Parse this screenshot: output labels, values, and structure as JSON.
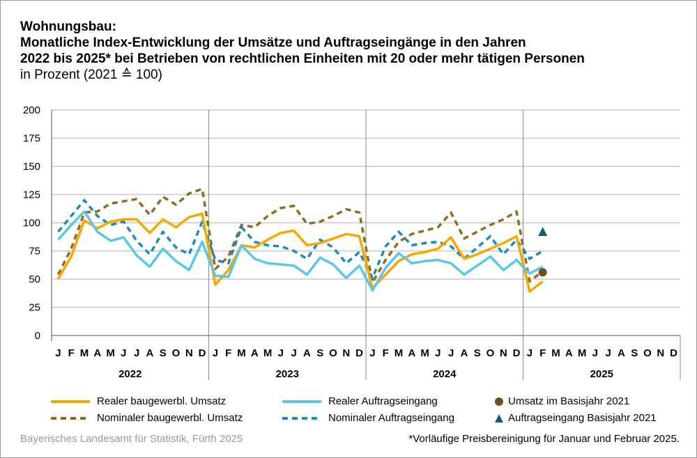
{
  "title_lines": [
    "Wohnungsbau:",
    "Monatliche Index-Entwicklung der Umsätze und Auftragseingänge in den Jahren",
    "2022 bis 2025* bei Betrieben von rechtlichen Einheiten mit 20 oder mehr tätigen Personen"
  ],
  "subtitle": "in Prozent (2021 ≙ 100)",
  "source": "Bayerisches Landesamt für Statistik, Fürth 2025",
  "footnote": "*Vorläufige Preisbereinigung für Januar und Februar 2025.",
  "chart_data": {
    "type": "line",
    "ylim": [
      0,
      200
    ],
    "yticks": [
      "0",
      "25",
      "50",
      "75",
      "100",
      "125",
      "150",
      "175",
      "200"
    ],
    "months": [
      "J",
      "F",
      "M",
      "A",
      "M",
      "J",
      "J",
      "A",
      "S",
      "O",
      "N",
      "D"
    ],
    "years": [
      "2022",
      "2023",
      "2024",
      "2025"
    ],
    "grid": true,
    "legend_position": "bottom",
    "series": [
      {
        "name": "Realer baugewerbl. Umsatz",
        "color": "#f5a800",
        "dashed": false,
        "values": [
          50,
          70,
          102,
          95,
          101,
          103,
          103,
          91,
          103,
          96,
          105,
          108,
          45,
          58,
          80,
          78,
          85,
          91,
          93,
          80,
          82,
          86,
          90,
          88,
          42,
          54,
          66,
          72,
          74,
          77,
          87,
          68,
          72,
          77,
          82,
          88,
          39,
          48
        ]
      },
      {
        "name": "Realer Auftragseingang",
        "color": "#5bc5ea",
        "dashed": false,
        "values": [
          85,
          98,
          110,
          92,
          84,
          87,
          71,
          61,
          77,
          66,
          58,
          83,
          53,
          52,
          80,
          68,
          64,
          63,
          62,
          54,
          69,
          63,
          51,
          62,
          40,
          60,
          73,
          64,
          66,
          67,
          64,
          54,
          62,
          70,
          58,
          67,
          55,
          61
        ]
      },
      {
        "name": "Nominaler baugewerbl. Umsatz",
        "color": "#8f6b22",
        "dashed": true,
        "values": [
          54,
          77,
          109,
          110,
          117,
          119,
          121,
          107,
          123,
          116,
          126,
          130,
          59,
          70,
          98,
          96,
          106,
          113,
          115,
          99,
          101,
          106,
          112,
          109,
          47,
          67,
          83,
          90,
          93,
          96,
          109,
          86,
          92,
          98,
          103,
          110,
          48,
          57
        ]
      },
      {
        "name": "Nominaler Auftragseingang",
        "color": "#1a8cb5",
        "dashed": true,
        "values": [
          92,
          106,
          120,
          106,
          98,
          101,
          84,
          72,
          92,
          78,
          72,
          101,
          67,
          64,
          96,
          83,
          80,
          79,
          75,
          68,
          85,
          78,
          64,
          74,
          51,
          79,
          92,
          80,
          82,
          83,
          79,
          68,
          78,
          88,
          72,
          85,
          68,
          75
        ]
      }
    ],
    "markers": [
      {
        "name": "Umsatz im Basisjahr 2021",
        "shape": "circle",
        "color": "#6b4f1d",
        "month_index": 37,
        "value": 56
      },
      {
        "name": "Auftragseingang Basisjahr 2021",
        "shape": "triangle",
        "color": "#145c7a",
        "month_index": 37,
        "value": 92
      }
    ]
  }
}
